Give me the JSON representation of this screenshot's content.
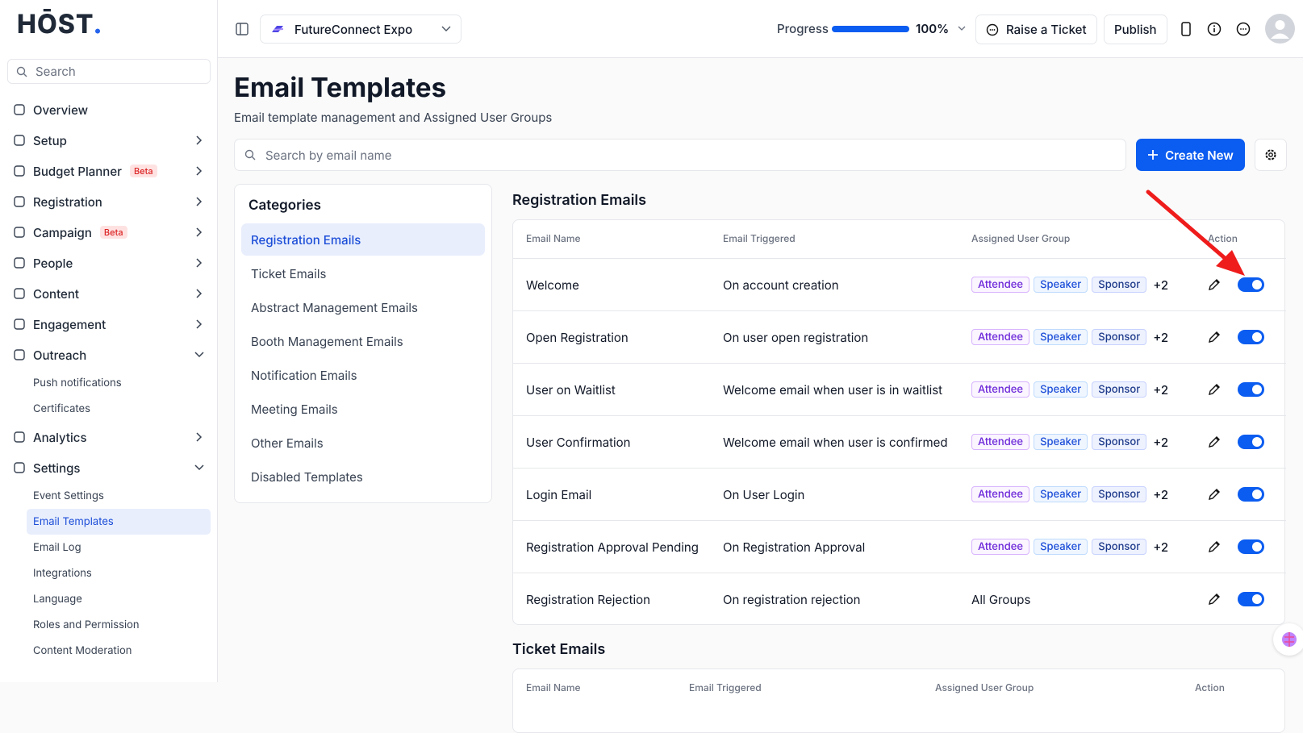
{
  "logo": {
    "text": "HŌST",
    "dot": "."
  },
  "sidebar": {
    "search": "Search",
    "items": [
      {
        "label": "Overview",
        "has_children": false
      },
      {
        "label": "Setup",
        "has_children": true
      },
      {
        "label": "Budget Planner",
        "badge": "Beta",
        "has_children": true
      },
      {
        "label": "Registration",
        "has_children": true
      },
      {
        "label": "Campaign",
        "badge": "Beta",
        "has_children": true
      },
      {
        "label": "People",
        "has_children": true
      },
      {
        "label": "Content",
        "has_children": true
      },
      {
        "label": "Engagement",
        "has_children": true
      },
      {
        "label": "Outreach",
        "has_children": true,
        "expanded": true,
        "children": [
          {
            "label": "Push notifications"
          },
          {
            "label": "Certificates"
          }
        ]
      },
      {
        "label": "Analytics",
        "has_children": true
      },
      {
        "label": "Settings",
        "has_children": true,
        "expanded": true,
        "children": [
          {
            "label": "Event Settings"
          },
          {
            "label": "Email Templates",
            "active": true
          },
          {
            "label": "Email Log"
          },
          {
            "label": "Integrations"
          },
          {
            "label": "Language"
          },
          {
            "label": "Roles and Permission"
          },
          {
            "label": "Content Moderation"
          }
        ]
      }
    ]
  },
  "topbar": {
    "event": "FutureConnect Expo",
    "progress": {
      "label": "Progress",
      "value": 100,
      "max": 100,
      "value_label": "100%"
    },
    "raise_ticket": "Raise a Ticket",
    "publish": "Publish"
  },
  "main": {
    "title": "Email Templates",
    "subtitle": "Email template management and Assigned User Groups",
    "search": "Search by email name",
    "create": "Create New",
    "categories": {
      "title": "Categories",
      "items": [
        "Registration Emails",
        "Ticket Emails",
        "Abstract Management Emails",
        "Booth Management Emails",
        "Notification Emails",
        "Meeting Emails",
        "Other Emails",
        "Disabled Templates"
      ],
      "active": 0
    },
    "sections": [
      {
        "title": "Registration Emails",
        "columns": [
          "Email Name",
          "Email Triggered",
          "Assigned User Group",
          "Action"
        ],
        "rows": [
          {
            "name": "Welcome",
            "trigger": "On account creation",
            "groups": [
              "Attendee",
              "Speaker",
              "Sponsor"
            ],
            "more": "+2",
            "enabled": true
          },
          {
            "name": "Open Registration",
            "trigger": "On user open registration",
            "groups": [
              "Attendee",
              "Speaker",
              "Sponsor"
            ],
            "more": "+2",
            "enabled": true
          },
          {
            "name": "User on Waitlist",
            "trigger": "Welcome email when user is in waitlist",
            "groups": [
              "Attendee",
              "Speaker",
              "Sponsor"
            ],
            "more": "+2",
            "enabled": true
          },
          {
            "name": "User Confirmation",
            "trigger": "Welcome email when user is confirmed",
            "groups": [
              "Attendee",
              "Speaker",
              "Sponsor"
            ],
            "more": "+2",
            "enabled": true
          },
          {
            "name": "Login Email",
            "trigger": "On User Login",
            "groups": [
              "Attendee",
              "Speaker",
              "Sponsor"
            ],
            "more": "+2",
            "enabled": true
          },
          {
            "name": "Registration Approval Pending",
            "trigger": "On Registration Approval",
            "groups": [
              "Attendee",
              "Speaker",
              "Sponsor"
            ],
            "more": "+2",
            "enabled": true
          },
          {
            "name": "Registration Rejection",
            "trigger": "On registration rejection",
            "group_text": "All Groups",
            "enabled": true
          }
        ]
      },
      {
        "title": "Ticket Emails",
        "columns": [
          "Email Name",
          "Email Triggered",
          "Assigned User Group",
          "Action"
        ],
        "rows": []
      }
    ]
  }
}
